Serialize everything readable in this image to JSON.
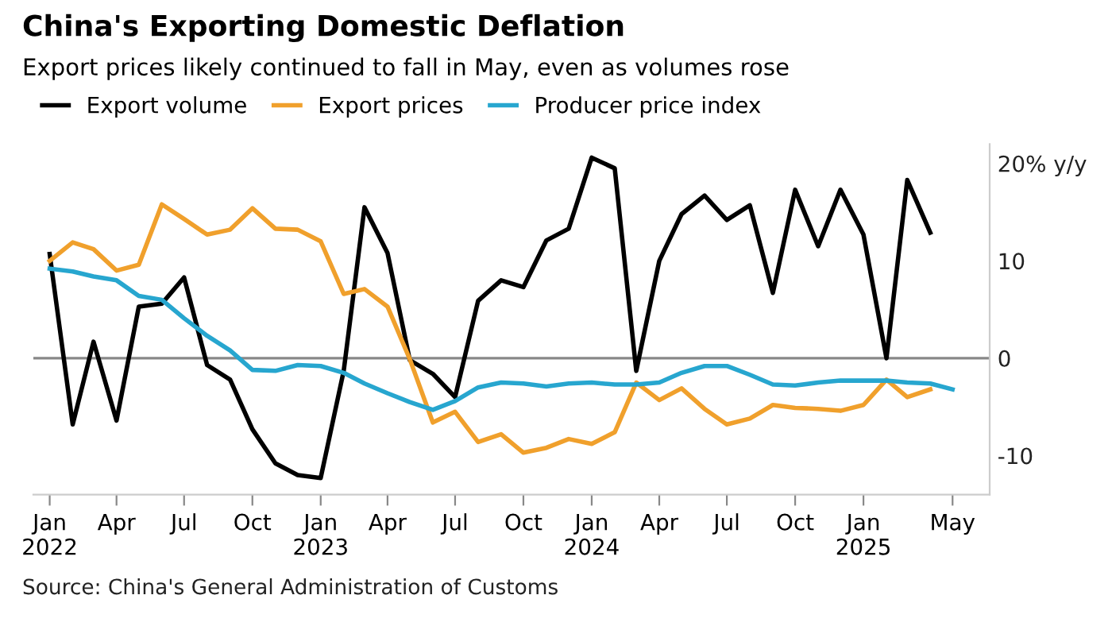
{
  "chart_data": {
    "type": "line",
    "title": "China's Exporting Domestic Deflation",
    "subtitle": "Export prices likely continued to fall in May, even as volumes rose",
    "x": [
      "2022-01",
      "2022-02",
      "2022-03",
      "2022-04",
      "2022-05",
      "2022-06",
      "2022-07",
      "2022-08",
      "2022-09",
      "2022-10",
      "2022-11",
      "2022-12",
      "2023-01",
      "2023-02",
      "2023-03",
      "2023-04",
      "2023-05",
      "2023-06",
      "2023-07",
      "2023-08",
      "2023-09",
      "2023-10",
      "2023-11",
      "2023-12",
      "2024-01",
      "2024-02",
      "2024-03",
      "2024-04",
      "2024-05",
      "2024-06",
      "2024-07",
      "2024-08",
      "2024-09",
      "2024-10",
      "2024-11",
      "2024-12",
      "2025-01",
      "2025-02",
      "2025-03",
      "2025-04",
      "2025-05"
    ],
    "series": [
      {
        "name": "Export volume",
        "color": "#000000",
        "values": [
          10.7,
          -6.8,
          1.7,
          -6.4,
          5.3,
          5.6,
          8.3,
          -0.7,
          -2.2,
          -7.3,
          -10.8,
          -12.0,
          -12.3,
          -1.3,
          15.5,
          10.8,
          -0.2,
          -1.6,
          -4.0,
          5.9,
          8.0,
          7.3,
          12.1,
          13.3,
          20.6,
          19.5,
          -1.3,
          10.0,
          14.8,
          16.7,
          14.2,
          15.7,
          6.7,
          17.3,
          11.5,
          17.3,
          12.7,
          0,
          18.3,
          12.9,
          null
        ]
      },
      {
        "name": "Export prices",
        "color": "#f0a02c",
        "values": [
          10.0,
          11.9,
          11.2,
          9.0,
          9.6,
          15.8,
          14.3,
          12.7,
          13.2,
          15.4,
          13.3,
          13.2,
          12.0,
          6.6,
          7.1,
          5.3,
          -0.1,
          -6.6,
          -5.5,
          -8.6,
          -7.8,
          -9.7,
          -9.2,
          -8.3,
          -8.8,
          -7.6,
          -2.5,
          -4.3,
          -3.1,
          -5.2,
          -6.8,
          -6.2,
          -4.8,
          -5.1,
          -5.2,
          -5.4,
          -4.8,
          -2.2,
          -4.0,
          -3.2,
          null
        ]
      },
      {
        "name": "Producer price index",
        "color": "#27a6cf",
        "values": [
          9.2,
          8.9,
          8.4,
          8.0,
          6.4,
          6.0,
          4.1,
          2.3,
          0.8,
          -1.2,
          -1.3,
          -0.7,
          -0.8,
          -1.5,
          -2.6,
          -3.6,
          -4.5,
          -5.3,
          -4.4,
          -3.0,
          -2.5,
          -2.6,
          -2.9,
          -2.6,
          -2.5,
          -2.7,
          -2.7,
          -2.5,
          -1.5,
          -0.8,
          -0.8,
          -1.7,
          -2.7,
          -2.8,
          -2.5,
          -2.3,
          -2.3,
          -2.3,
          -2.5,
          -2.6,
          -3.2
        ]
      }
    ],
    "xlim": [
      "2021-12-10",
      "2025-06-20"
    ],
    "xticks": [
      {
        "value": "2022-01",
        "label": "Jan\n2022"
      },
      {
        "value": "2022-04",
        "label": "Apr"
      },
      {
        "value": "2022-07",
        "label": "Jul"
      },
      {
        "value": "2022-10",
        "label": "Oct"
      },
      {
        "value": "2023-01",
        "label": "Jan\n2023"
      },
      {
        "value": "2023-04",
        "label": "Apr"
      },
      {
        "value": "2023-07",
        "label": "Jul"
      },
      {
        "value": "2023-10",
        "label": "Oct"
      },
      {
        "value": "2024-01",
        "label": "Jan\n2024"
      },
      {
        "value": "2024-04",
        "label": "Apr"
      },
      {
        "value": "2024-07",
        "label": "Jul"
      },
      {
        "value": "2024-10",
        "label": "Oct"
      },
      {
        "value": "2025-01",
        "label": "Jan\n2025"
      },
      {
        "value": "2025-05",
        "label": "May"
      }
    ],
    "ylim": [
      -14,
      22
    ],
    "yticks": [
      {
        "value": 20,
        "label": "20% y/y"
      },
      10,
      0,
      -10
    ],
    "ref_lines": [
      {
        "axis": "y",
        "value": 0,
        "color": "#888888"
      }
    ],
    "grid": false,
    "legend": "top left",
    "line_style": "solid",
    "marker": "none",
    "annotations": [
      "Source: China's General Administration of Customs"
    ]
  }
}
